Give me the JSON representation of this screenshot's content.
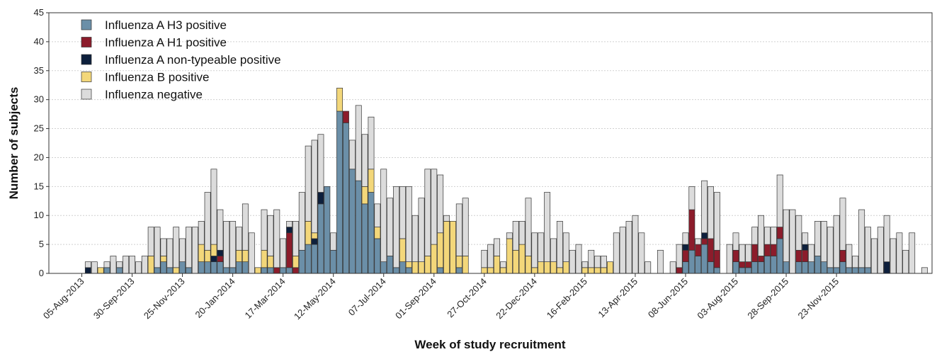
{
  "chart_data": {
    "type": "bar",
    "stacked": true,
    "xlabel": "Week of study recruitment",
    "ylabel": "Number of subjects",
    "ylim": [
      0,
      45
    ],
    "yticks": [
      0,
      5,
      10,
      15,
      20,
      25,
      30,
      35,
      40,
      45
    ],
    "grid": "horizontal dotted",
    "legend_position": "top-left",
    "x_tick_labels": [
      "05-Aug-2013",
      "30-Sep-2013",
      "25-Nov-2013",
      "20-Jan-2014",
      "17-Mar-2014",
      "12-May-2014",
      "07-Jul-2014",
      "01-Sep-2014",
      "27-Oct-2014",
      "22-Dec-2014",
      "16-Feb-2015",
      "13-Apr-2015",
      "08-Jun-2015",
      "03-Aug-2015",
      "28-Sep-2015",
      "23-Nov-2015"
    ],
    "x_tick_every_weeks": 8,
    "series": [
      {
        "name": "Influenza A H3 positive",
        "color": "#6b8fa8",
        "values": [
          0,
          0,
          0,
          0,
          1,
          0,
          1,
          0,
          0,
          0,
          0,
          0,
          1,
          2,
          1,
          0,
          2,
          1,
          0,
          2,
          2,
          2,
          2,
          1,
          1,
          2,
          2,
          0,
          0,
          1,
          1,
          0,
          1,
          1,
          0,
          4,
          5,
          5,
          12,
          15,
          4,
          28,
          26,
          18,
          16,
          12,
          14,
          6,
          2,
          3,
          1,
          2,
          1,
          0,
          0,
          0,
          0,
          1,
          0,
          0,
          1,
          0,
          0,
          0,
          0,
          0,
          0,
          0,
          0,
          0,
          0,
          0,
          0,
          0,
          0,
          0,
          0,
          0,
          0,
          0,
          0,
          0,
          0,
          0,
          0,
          0,
          0,
          0,
          0,
          0,
          0,
          0,
          0,
          0,
          0,
          0,
          2,
          4,
          3,
          5,
          2,
          1,
          0,
          0,
          2,
          1,
          1,
          2,
          2,
          3,
          3,
          6,
          2,
          0,
          2,
          2,
          2,
          3,
          2,
          1,
          1,
          2,
          1,
          1,
          1,
          1,
          0,
          0,
          0,
          0,
          0,
          0,
          0,
          0,
          0
        ]
      },
      {
        "name": "Influenza A H1 positive",
        "color": "#8c1c2b",
        "values": [
          0,
          0,
          0,
          0,
          0,
          0,
          0,
          0,
          0,
          0,
          0,
          0,
          0,
          0,
          0,
          0,
          0,
          0,
          0,
          0,
          0,
          0,
          1,
          0,
          0,
          0,
          0,
          0,
          0,
          0,
          0,
          1,
          0,
          6,
          1,
          0,
          0,
          0,
          0,
          0,
          0,
          0,
          2,
          0,
          0,
          0,
          0,
          0,
          0,
          0,
          0,
          0,
          0,
          0,
          0,
          0,
          0,
          0,
          0,
          0,
          0,
          0,
          0,
          0,
          0,
          0,
          0,
          0,
          0,
          0,
          0,
          0,
          0,
          0,
          0,
          0,
          0,
          0,
          0,
          0,
          0,
          0,
          0,
          0,
          0,
          0,
          0,
          0,
          0,
          0,
          0,
          0,
          0,
          0,
          0,
          1,
          2,
          7,
          2,
          1,
          4,
          3,
          0,
          0,
          2,
          1,
          1,
          3,
          1,
          2,
          2,
          2,
          0,
          0,
          2,
          2,
          0,
          0,
          0,
          0,
          0,
          2,
          0,
          0,
          0,
          0,
          0,
          0,
          0,
          0,
          0,
          0,
          0,
          0,
          0
        ]
      },
      {
        "name": "Influenza A non-typeable positive",
        "color": "#0d1f3c",
        "values": [
          0,
          1,
          0,
          0,
          0,
          0,
          0,
          0,
          0,
          0,
          0,
          0,
          0,
          0,
          0,
          0,
          0,
          0,
          0,
          0,
          0,
          1,
          1,
          0,
          0,
          0,
          0,
          0,
          0,
          0,
          0,
          0,
          0,
          1,
          0,
          0,
          0,
          1,
          2,
          0,
          0,
          0,
          0,
          0,
          0,
          0,
          0,
          0,
          0,
          0,
          0,
          0,
          0,
          0,
          0,
          0,
          0,
          0,
          0,
          0,
          0,
          0,
          0,
          0,
          0,
          0,
          0,
          0,
          0,
          0,
          0,
          0,
          0,
          0,
          0,
          0,
          0,
          0,
          0,
          0,
          0,
          0,
          0,
          0,
          0,
          0,
          0,
          0,
          0,
          0,
          0,
          0,
          0,
          0,
          0,
          0,
          1,
          0,
          0,
          1,
          0,
          0,
          0,
          0,
          0,
          0,
          0,
          0,
          0,
          0,
          0,
          0,
          0,
          0,
          0,
          1,
          0,
          0,
          0,
          0,
          0,
          0,
          0,
          0,
          0,
          0,
          0,
          0,
          2,
          0,
          0,
          0,
          0,
          0,
          0
        ]
      },
      {
        "name": "Influenza B positive",
        "color": "#f3d77a",
        "values": [
          0,
          0,
          0,
          1,
          0,
          0,
          0,
          0,
          0,
          0,
          0,
          3,
          0,
          1,
          0,
          1,
          0,
          0,
          0,
          3,
          2,
          2,
          0,
          0,
          0,
          2,
          2,
          0,
          1,
          3,
          2,
          0,
          0,
          0,
          2,
          0,
          4,
          1,
          0,
          0,
          0,
          4,
          0,
          0,
          0,
          3,
          4,
          2,
          0,
          0,
          0,
          4,
          1,
          2,
          2,
          3,
          5,
          6,
          9,
          9,
          2,
          3,
          0,
          0,
          1,
          1,
          3,
          1,
          6,
          4,
          5,
          3,
          1,
          2,
          2,
          2,
          1,
          2,
          0,
          0,
          1,
          1,
          1,
          1,
          2,
          0,
          0,
          0,
          0,
          0,
          0,
          0,
          0,
          0,
          0,
          0,
          0,
          0,
          0,
          0,
          0,
          0,
          0,
          0,
          0,
          0,
          0,
          0,
          0,
          0,
          0,
          0,
          0,
          0,
          0,
          0,
          0,
          0,
          0,
          0,
          0,
          0,
          0,
          0,
          0,
          0,
          0,
          0,
          0,
          0,
          0,
          0,
          0,
          0,
          0
        ]
      },
      {
        "name": "Influenza negative",
        "color": "#dcdcdc",
        "values": [
          0,
          1,
          2,
          0,
          1,
          3,
          1,
          3,
          3,
          2,
          3,
          5,
          7,
          3,
          5,
          7,
          4,
          7,
          8,
          4,
          10,
          13,
          7,
          8,
          8,
          4,
          8,
          7,
          0,
          7,
          7,
          10,
          5,
          1,
          6,
          10,
          13,
          16,
          10,
          0,
          3,
          0,
          0,
          5,
          13,
          9,
          9,
          4,
          16,
          10,
          14,
          9,
          13,
          8,
          11,
          15,
          13,
          10,
          1,
          0,
          9,
          10,
          0,
          0,
          3,
          4,
          3,
          1,
          1,
          5,
          4,
          10,
          6,
          5,
          12,
          4,
          8,
          5,
          4,
          5,
          1,
          3,
          2,
          2,
          0,
          7,
          8,
          9,
          10,
          7,
          2,
          0,
          4,
          0,
          2,
          4,
          2,
          4,
          1,
          9,
          9,
          10,
          0,
          5,
          3,
          3,
          3,
          3,
          7,
          3,
          3,
          9,
          9,
          11,
          6,
          2,
          3,
          6,
          7,
          7,
          9,
          9,
          4,
          2,
          10,
          7,
          6,
          8,
          8,
          6,
          7,
          4,
          7,
          0,
          1
        ]
      }
    ]
  }
}
